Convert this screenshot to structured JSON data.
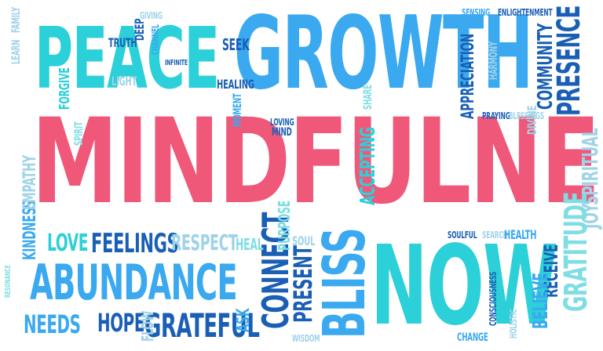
{
  "colors": {
    "pink": "#f0587a",
    "sky": "#3aa9f0",
    "cyan": "#2bd0d8",
    "navy": "#1a5fb4",
    "pale": "#9fd3e8",
    "lightcyan": "#7fdde4"
  },
  "words": [
    {
      "text": "MINDFULNESS",
      "color": "pink"
    },
    {
      "text": "GROWTH",
      "color": "sky"
    },
    {
      "text": "PEACE",
      "color": "cyan"
    },
    {
      "text": "NOW",
      "color": "cyan"
    },
    {
      "text": "ABUNDANCE",
      "color": "sky"
    },
    {
      "text": "BLISS",
      "color": "sky"
    },
    {
      "text": "CONNECT",
      "color": "navy"
    },
    {
      "text": "PRESENCE",
      "color": "navy"
    },
    {
      "text": "COMMUNITY",
      "color": "navy"
    },
    {
      "text": "APPRECIATION",
      "color": "navy"
    },
    {
      "text": "SPIRITUAL",
      "color": "pale"
    },
    {
      "text": "JOY",
      "color": "pale"
    },
    {
      "text": "GRATITUDE",
      "color": "lightcyan"
    },
    {
      "text": "RECEIVE",
      "color": "navy"
    },
    {
      "text": "BELIEVE",
      "color": "sky"
    },
    {
      "text": "GRATEFUL",
      "color": "navy"
    },
    {
      "text": "HOPE",
      "color": "navy"
    },
    {
      "text": "NEEDS",
      "color": "sky"
    },
    {
      "text": "FLOW",
      "color": "pale"
    },
    {
      "text": "ASK",
      "color": "sky"
    },
    {
      "text": "PRESENT",
      "color": "navy"
    },
    {
      "text": "FEELINGS",
      "color": "navy"
    },
    {
      "text": "LOVE",
      "color": "cyan"
    },
    {
      "text": "RESPECT",
      "color": "pale"
    },
    {
      "text": "HEAL",
      "color": "lightcyan"
    },
    {
      "text": "PURPOSE",
      "color": "lightcyan"
    },
    {
      "text": "SOUL",
      "color": "pale"
    },
    {
      "text": "KINDNESS",
      "color": "sky"
    },
    {
      "text": "EMPATHY",
      "color": "pale"
    },
    {
      "text": "RESONANCE",
      "color": "lightcyan"
    },
    {
      "text": "ACCEPTING",
      "color": "cyan"
    },
    {
      "text": "LOVING",
      "color": "navy"
    },
    {
      "text": "MIND",
      "color": "navy"
    },
    {
      "text": "MOMENT",
      "color": "sky"
    },
    {
      "text": "HEALING",
      "color": "navy"
    },
    {
      "text": "SEEK",
      "color": "navy"
    },
    {
      "text": "TRUTH",
      "color": "navy"
    },
    {
      "text": "DEEP",
      "color": "navy"
    },
    {
      "text": "INFINITE",
      "color": "navy"
    },
    {
      "text": "CHANNEL",
      "color": "sky"
    },
    {
      "text": "GIVING",
      "color": "pale"
    },
    {
      "text": "LIGHT",
      "color": "pale"
    },
    {
      "text": "FORGIVE",
      "color": "cyan"
    },
    {
      "text": "SPIRIT",
      "color": "lightcyan"
    },
    {
      "text": "LEARN",
      "color": "pale"
    },
    {
      "text": "FAMILY",
      "color": "pale"
    },
    {
      "text": "SHARE",
      "color": "lightcyan"
    },
    {
      "text": "SENSING",
      "color": "sky"
    },
    {
      "text": "ENLIGHTENMENT",
      "color": "navy"
    },
    {
      "text": "HARMONY",
      "color": "pale"
    },
    {
      "text": "PRAYING",
      "color": "navy"
    },
    {
      "text": "BLESSINGS",
      "color": "pale"
    },
    {
      "text": "DIVINE",
      "color": "pale"
    },
    {
      "text": "SOULFUL",
      "color": "navy"
    },
    {
      "text": "SEARCH",
      "color": "pale"
    },
    {
      "text": "HEALTH",
      "color": "sky"
    },
    {
      "text": "CONSCIOUSNESS",
      "color": "navy"
    },
    {
      "text": "CHANGE",
      "color": "sky"
    },
    {
      "text": "HOLISTIC",
      "color": "pale"
    },
    {
      "text": "WISDOM",
      "color": "pale"
    }
  ]
}
